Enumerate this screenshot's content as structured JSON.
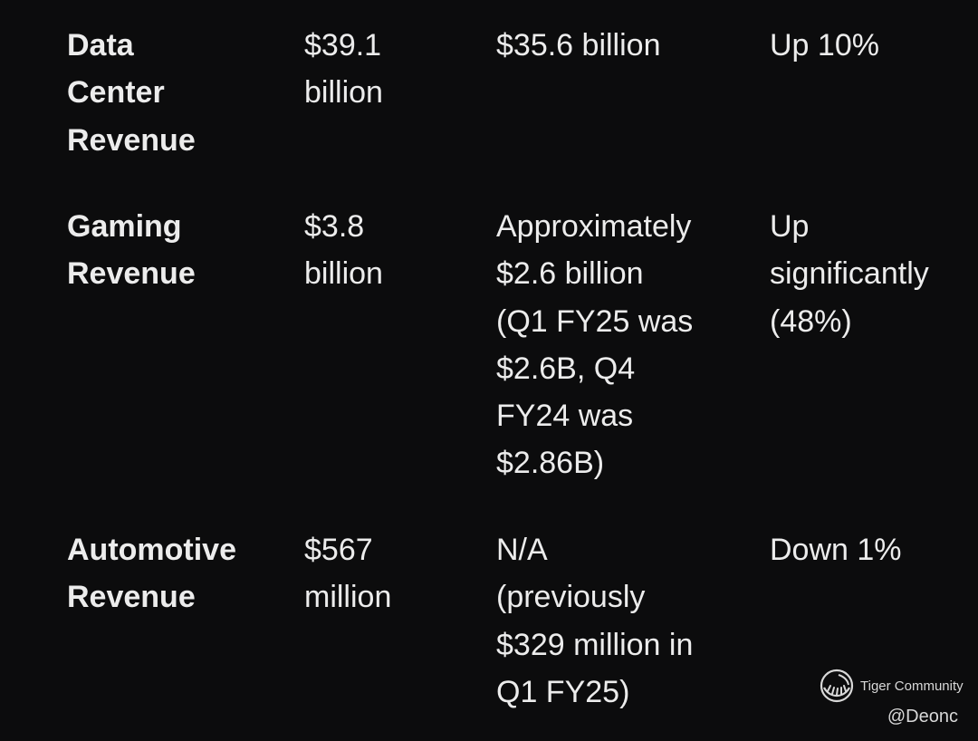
{
  "rows": [
    {
      "metric": "Data\nCenter\nRevenue",
      "current": "$39.1\nbillion",
      "previous": "$35.6 billion",
      "change": "Up 10%"
    },
    {
      "metric": "Gaming\nRevenue",
      "current": "$3.8\nbillion",
      "previous": "Approximately\n$2.6 billion\n(Q1 FY25 was\n$2.6B, Q4\nFY24 was\n$2.86B)",
      "change": "Up\nsignificantly\n(48%)"
    },
    {
      "metric": "Automotive\nRevenue",
      "current": "$567\nmillion",
      "previous": "N/A\n(previously\n$329 million in\nQ1 FY25)",
      "change": "Down 1%"
    }
  ],
  "watermark": {
    "brand": "Tiger Community",
    "handle": "@Deonc",
    "logo_icon": "tiger-stripe-logo-icon"
  }
}
